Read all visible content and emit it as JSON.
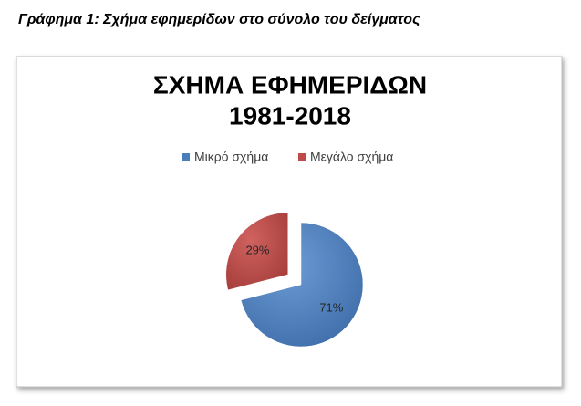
{
  "caption": "Γράφημα 1: Σχήμα εφημερίδων στο σύνολο του δείγματος",
  "chart_data": {
    "type": "pie",
    "title": [
      "ΣΧΗΜΑ ΕΦΗΜΕΡΙΔΩΝ",
      "1981-2018"
    ],
    "categories": [
      "Μικρό σχήμα",
      "Μεγάλο σχήμα"
    ],
    "values": [
      71,
      29
    ],
    "value_labels": [
      "71%",
      "29%"
    ],
    "colors": [
      "#4a7ebb",
      "#be4b48"
    ],
    "exploded": [
      false,
      true
    ],
    "legend": "top"
  }
}
